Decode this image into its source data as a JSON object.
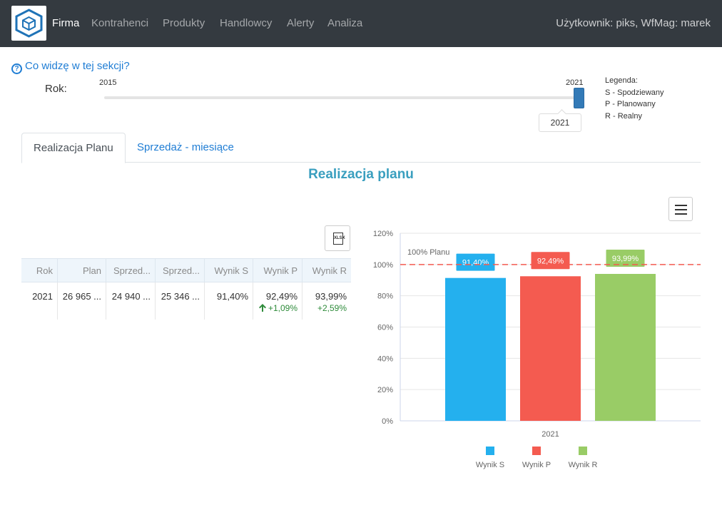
{
  "navbar": {
    "items": [
      "Firma",
      "Kontrahenci",
      "Produkty",
      "Handlowcy",
      "Alerty",
      "Analiza"
    ],
    "active": "Firma",
    "user": "Użytkownik: piks, WfMag: marek"
  },
  "help_link": "Co widzę w tej sekcji?",
  "year_filter": {
    "label": "Rok:",
    "min": "2015",
    "max": "2021",
    "value": "2021"
  },
  "legend": [
    "Legenda:",
    "S - Spodziewany",
    "P - Planowany",
    "R - Realny"
  ],
  "tabs": [
    "Realizacja Planu",
    "Sprzedaż - miesiące"
  ],
  "section_title": "Realizacja planu",
  "grid": {
    "columns": [
      "Rok",
      "Plan",
      "Sprzed...",
      "Sprzed...",
      "Wynik S",
      "Wynik P",
      "Wynik R"
    ],
    "rows": [
      {
        "rok": "2021",
        "plan": "26 965 ...",
        "sprzed1": "24 940 ...",
        "sprzed2": "25 346 ...",
        "wynik_s": "91,40%",
        "wynik_p": "92,49%",
        "wynik_p_delta": "+1,09%",
        "wynik_r": "93,99%",
        "wynik_r_delta": "+2,59%"
      }
    ]
  },
  "chart_data": {
    "type": "bar",
    "categories": [
      "2021"
    ],
    "series": [
      {
        "name": "Wynik S",
        "values": [
          91.4
        ],
        "label": "91,40%",
        "color": "#24b0ee"
      },
      {
        "name": "Wynik P",
        "values": [
          92.49
        ],
        "label": "92,49%",
        "color": "#f45b50"
      },
      {
        "name": "Wynik R",
        "values": [
          93.99
        ],
        "label": "93,99%",
        "color": "#99cc66"
      }
    ],
    "y_ticks": [
      "0%",
      "20%",
      "40%",
      "60%",
      "80%",
      "100%",
      "120%"
    ],
    "ylim": [
      0,
      120
    ],
    "plot_line": {
      "value": 100,
      "label": "100% Planu",
      "color": "#f45b50"
    },
    "legend_position": "bottom",
    "grid": true
  }
}
